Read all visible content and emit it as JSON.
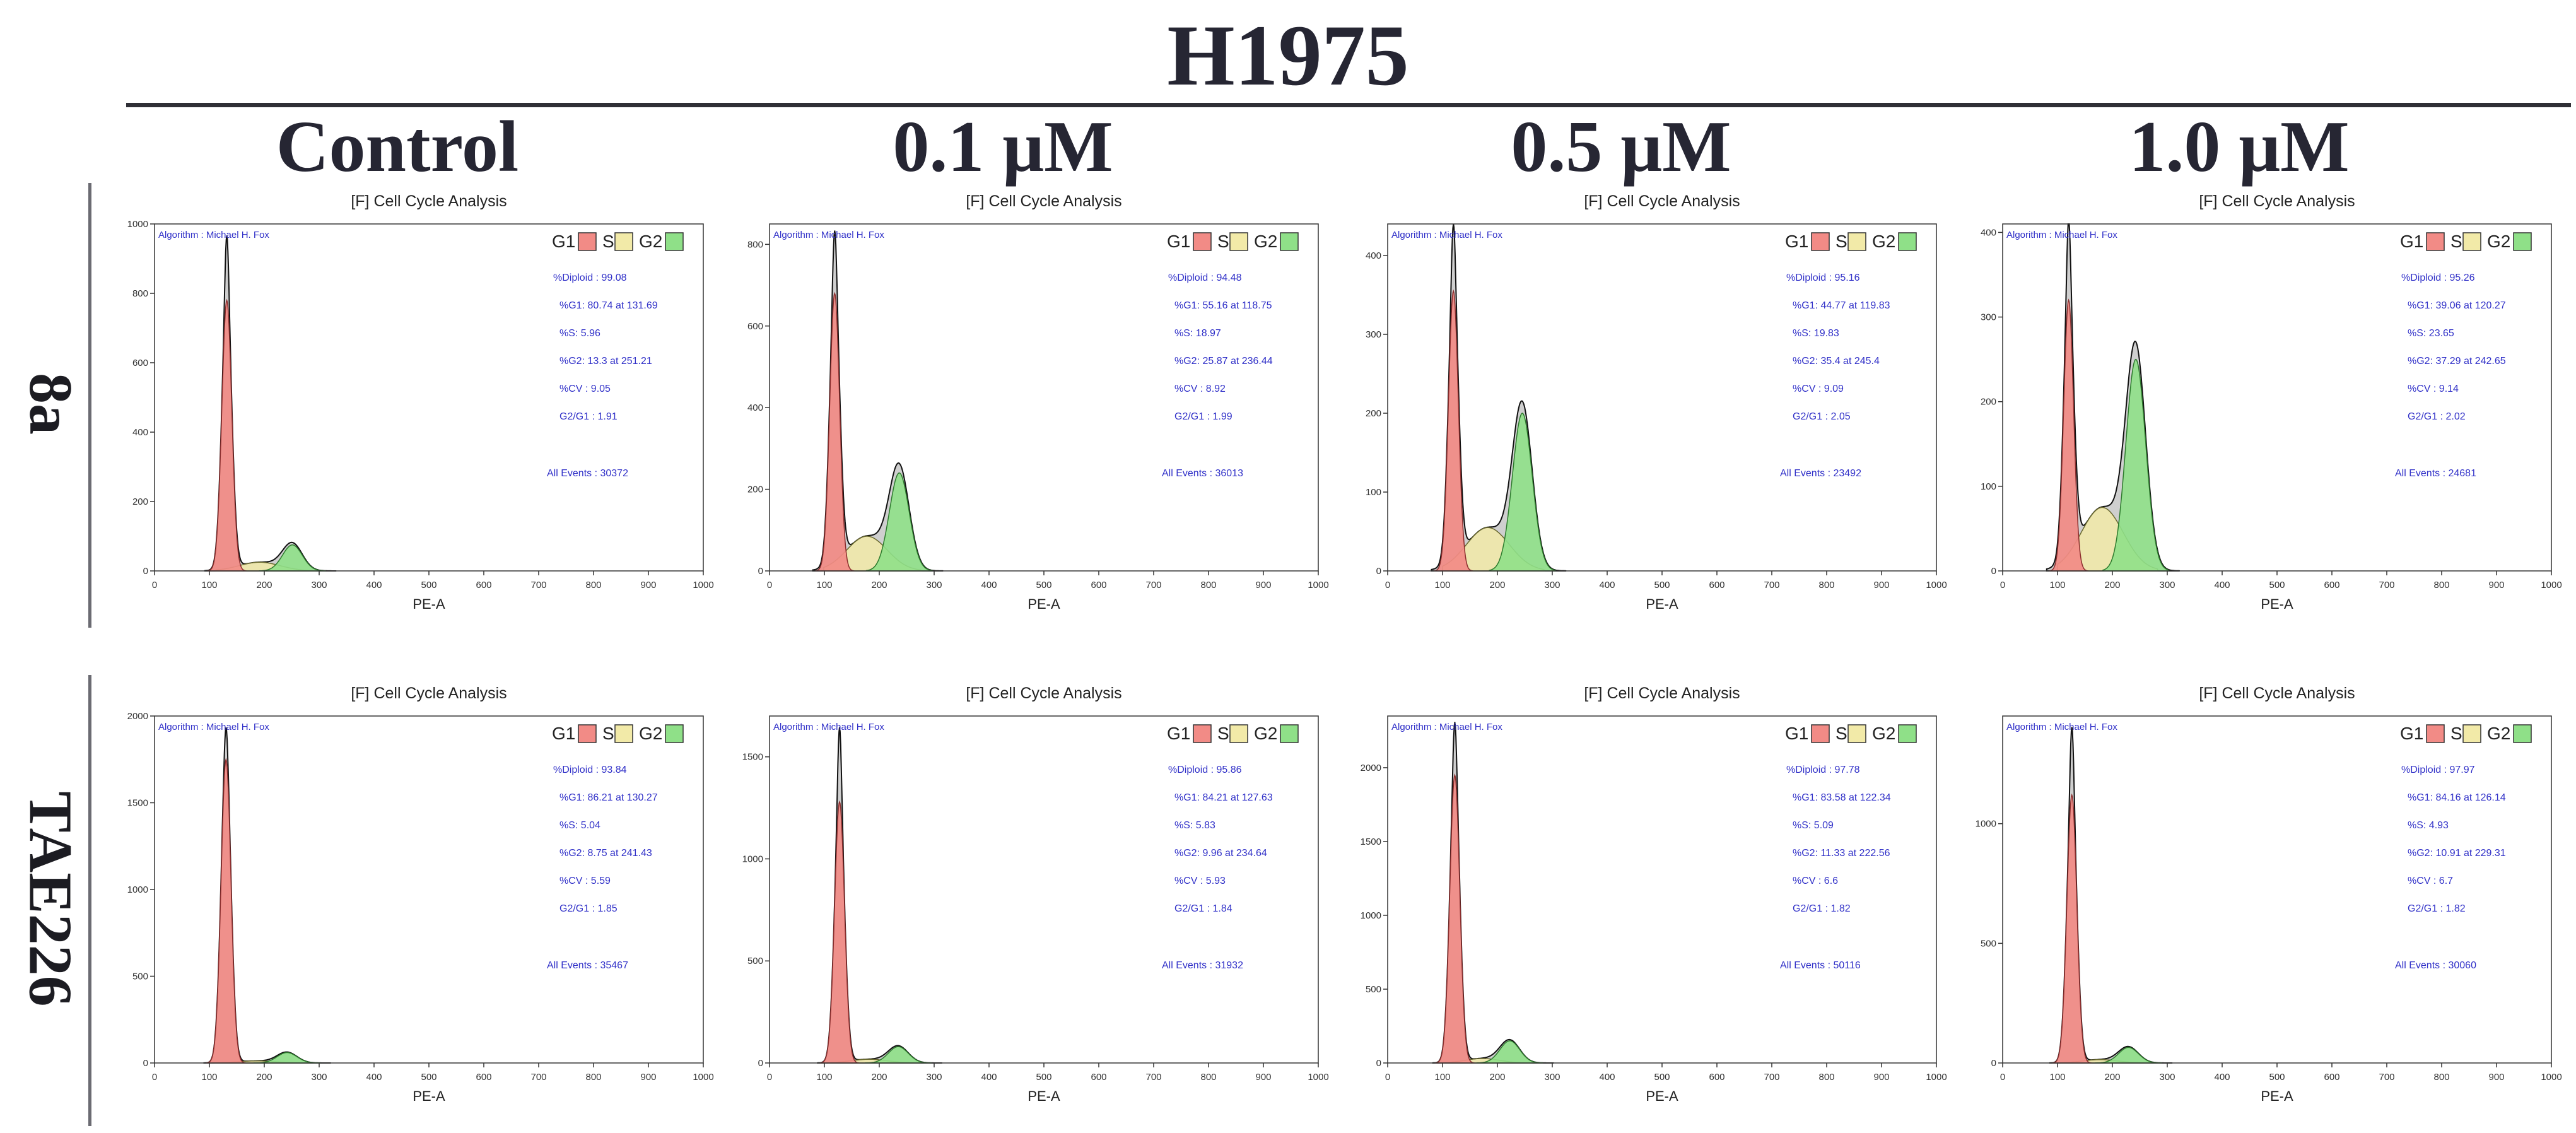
{
  "title": "H1975",
  "columns": [
    "Control",
    "0.1 μM",
    "0.5 μM",
    "1.0 μM"
  ],
  "rows": [
    "8a",
    "TAE226"
  ],
  "legend": [
    "G1",
    "S",
    "G2"
  ],
  "colors": {
    "g1": "#f28b86",
    "s": "#f2eaa8",
    "g2": "#8fe088",
    "raw": "#cfcfcf",
    "stat_text": "#3030c8",
    "axis": "#333333",
    "title_text": "#262633"
  },
  "chart_data": [
    {
      "type": "area",
      "row": "8a",
      "column": "Control",
      "title": "[F] Cell Cycle Analysis",
      "algorithm": "Algorithm : Michael H. Fox",
      "xlabel": "PE-A",
      "xlim": [
        0,
        1000
      ],
      "xticks": [
        0,
        100,
        200,
        300,
        400,
        500,
        600,
        700,
        800,
        900,
        1000
      ],
      "ylim": [
        0,
        1000
      ],
      "yticks": [
        0,
        200,
        400,
        600,
        800,
        1000
      ],
      "peaks": {
        "g1_position": 131.69,
        "g1_height": 780,
        "g2_position": 251.21,
        "g2_height": 75,
        "s_height": 25,
        "raw_peak": 960
      },
      "stats": [
        "%Diploid : 99.08",
        "%G1: 80.74 at 131.69",
        "%S: 5.96",
        "%G2: 13.3 at 251.21",
        "%CV : 9.05",
        "G2/G1 : 1.91"
      ],
      "events": "All Events : 30372"
    },
    {
      "type": "area",
      "row": "8a",
      "column": "0.1 μM",
      "title": "[F] Cell Cycle Analysis",
      "algorithm": "Algorithm : Michael H. Fox",
      "xlabel": "PE-A",
      "xlim": [
        0,
        1000
      ],
      "xticks": [
        0,
        100,
        200,
        300,
        400,
        500,
        600,
        700,
        800,
        900,
        1000
      ],
      "ylim": [
        0,
        850
      ],
      "yticks": [
        0,
        200,
        400,
        600,
        800
      ],
      "peaks": {
        "g1_position": 118.75,
        "g1_height": 680,
        "g2_position": 236.44,
        "g2_height": 240,
        "s_height": 85,
        "raw_peak": 810
      },
      "stats": [
        "%Diploid : 94.48",
        "%G1: 55.16 at 118.75",
        "%S: 18.97",
        "%G2: 25.87 at 236.44",
        "%CV : 8.92",
        "G2/G1 : 1.99"
      ],
      "events": "All Events : 36013"
    },
    {
      "type": "area",
      "row": "8a",
      "column": "0.5 μM",
      "title": "[F] Cell Cycle Analysis",
      "algorithm": "Algorithm : Michael H. Fox",
      "xlabel": "PE-A",
      "xlim": [
        0,
        1000
      ],
      "xticks": [
        0,
        100,
        200,
        300,
        400,
        500,
        600,
        700,
        800,
        900,
        1000
      ],
      "ylim": [
        0,
        440
      ],
      "yticks": [
        0,
        100,
        200,
        300,
        400
      ],
      "peaks": {
        "g1_position": 119.83,
        "g1_height": 355,
        "g2_position": 245.4,
        "g2_height": 200,
        "s_height": 55,
        "raw_peak": 425
      },
      "stats": [
        "%Diploid : 95.16",
        "%G1: 44.77 at 119.83",
        "%S: 19.83",
        "%G2: 35.4 at 245.4",
        "%CV : 9.09",
        "G2/G1 : 2.05"
      ],
      "events": "All Events : 23492"
    },
    {
      "type": "area",
      "row": "8a",
      "column": "1.0 μM",
      "title": "[F] Cell Cycle Analysis",
      "algorithm": "Algorithm : Michael H. Fox",
      "xlabel": "PE-A",
      "xlim": [
        0,
        1000
      ],
      "xticks": [
        0,
        100,
        200,
        300,
        400,
        500,
        600,
        700,
        800,
        900,
        1000
      ],
      "ylim": [
        0,
        410
      ],
      "yticks": [
        0,
        100,
        200,
        300,
        400
      ],
      "peaks": {
        "g1_position": 120.27,
        "g1_height": 320,
        "g2_position": 242.65,
        "g2_height": 250,
        "s_height": 75,
        "raw_peak": 395
      },
      "stats": [
        "%Diploid : 95.26",
        "%G1: 39.06 at 120.27",
        "%S: 23.65",
        "%G2: 37.29 at 242.65",
        "%CV : 9.14",
        "G2/G1 : 2.02"
      ],
      "events": "All Events : 24681"
    },
    {
      "type": "area",
      "row": "TAE226",
      "column": "Control",
      "title": "[F] Cell Cycle Analysis",
      "algorithm": "Algorithm : Michael H. Fox",
      "xlabel": "PE-A",
      "xlim": [
        0,
        1000
      ],
      "xticks": [
        0,
        100,
        200,
        300,
        400,
        500,
        600,
        700,
        800,
        900,
        1000
      ],
      "ylim": [
        0,
        2000
      ],
      "yticks": [
        0,
        500,
        1000,
        1500,
        2000
      ],
      "peaks": {
        "g1_position": 130.27,
        "g1_height": 1750,
        "g2_position": 241.43,
        "g2_height": 60,
        "s_height": 12,
        "raw_peak": 1930
      },
      "stats": [
        "%Diploid : 93.84",
        "%G1: 86.21 at 130.27",
        "%S: 5.04",
        "%G2: 8.75 at 241.43",
        "%CV : 5.59",
        "G2/G1 : 1.85"
      ],
      "events": "All Events : 35467"
    },
    {
      "type": "area",
      "row": "TAE226",
      "column": "0.1 μM",
      "title": "[F] Cell Cycle Analysis",
      "algorithm": "Algorithm : Michael H. Fox",
      "xlabel": "PE-A",
      "xlim": [
        0,
        1000
      ],
      "xticks": [
        0,
        100,
        200,
        300,
        400,
        500,
        600,
        700,
        800,
        900,
        1000
      ],
      "ylim": [
        0,
        1700
      ],
      "yticks": [
        0,
        500,
        1000,
        1500
      ],
      "peaks": {
        "g1_position": 127.63,
        "g1_height": 1280,
        "g2_position": 234.64,
        "g2_height": 80,
        "s_height": 18,
        "raw_peak": 1640
      },
      "stats": [
        "%Diploid : 95.86",
        "%G1: 84.21 at 127.63",
        "%S: 5.83",
        "%G2: 9.96 at 234.64",
        "%CV : 5.93",
        "G2/G1 : 1.84"
      ],
      "events": "All Events : 31932"
    },
    {
      "type": "area",
      "row": "TAE226",
      "column": "0.5 μM",
      "title": "[F] Cell Cycle Analysis",
      "algorithm": "Algorithm : Michael H. Fox",
      "xlabel": "PE-A",
      "xlim": [
        0,
        1000
      ],
      "xticks": [
        0,
        100,
        200,
        300,
        400,
        500,
        600,
        700,
        800,
        900,
        1000
      ],
      "ylim": [
        0,
        2350
      ],
      "yticks": [
        0,
        500,
        1000,
        1500,
        2000
      ],
      "peaks": {
        "g1_position": 122.34,
        "g1_height": 1950,
        "g2_position": 222.56,
        "g2_height": 150,
        "s_height": 30,
        "raw_peak": 2300
      },
      "stats": [
        "%Diploid : 97.78",
        "%G1: 83.58 at 122.34",
        "%S: 5.09",
        "%G2: 11.33 at 222.56",
        "%CV : 6.6",
        "G2/G1 : 1.82"
      ],
      "events": "All Events : 50116"
    },
    {
      "type": "area",
      "row": "TAE226",
      "column": "1.0 μM",
      "title": "[F] Cell Cycle Analysis",
      "algorithm": "Algorithm : Michael H. Fox",
      "xlabel": "PE-A",
      "xlim": [
        0,
        1000
      ],
      "xticks": [
        0,
        100,
        200,
        300,
        400,
        500,
        600,
        700,
        800,
        900,
        1000
      ],
      "ylim": [
        0,
        1450
      ],
      "yticks": [
        0,
        500,
        1000
      ],
      "peaks": {
        "g1_position": 126.14,
        "g1_height": 1120,
        "g2_position": 229.31,
        "g2_height": 65,
        "s_height": 14,
        "raw_peak": 1400
      },
      "stats": [
        "%Diploid : 97.97",
        "%G1: 84.16 at 126.14",
        "%S: 4.93",
        "%G2: 10.91 at 229.31",
        "%CV : 6.7",
        "G2/G1 : 1.82"
      ],
      "events": "All Events : 30060"
    }
  ]
}
